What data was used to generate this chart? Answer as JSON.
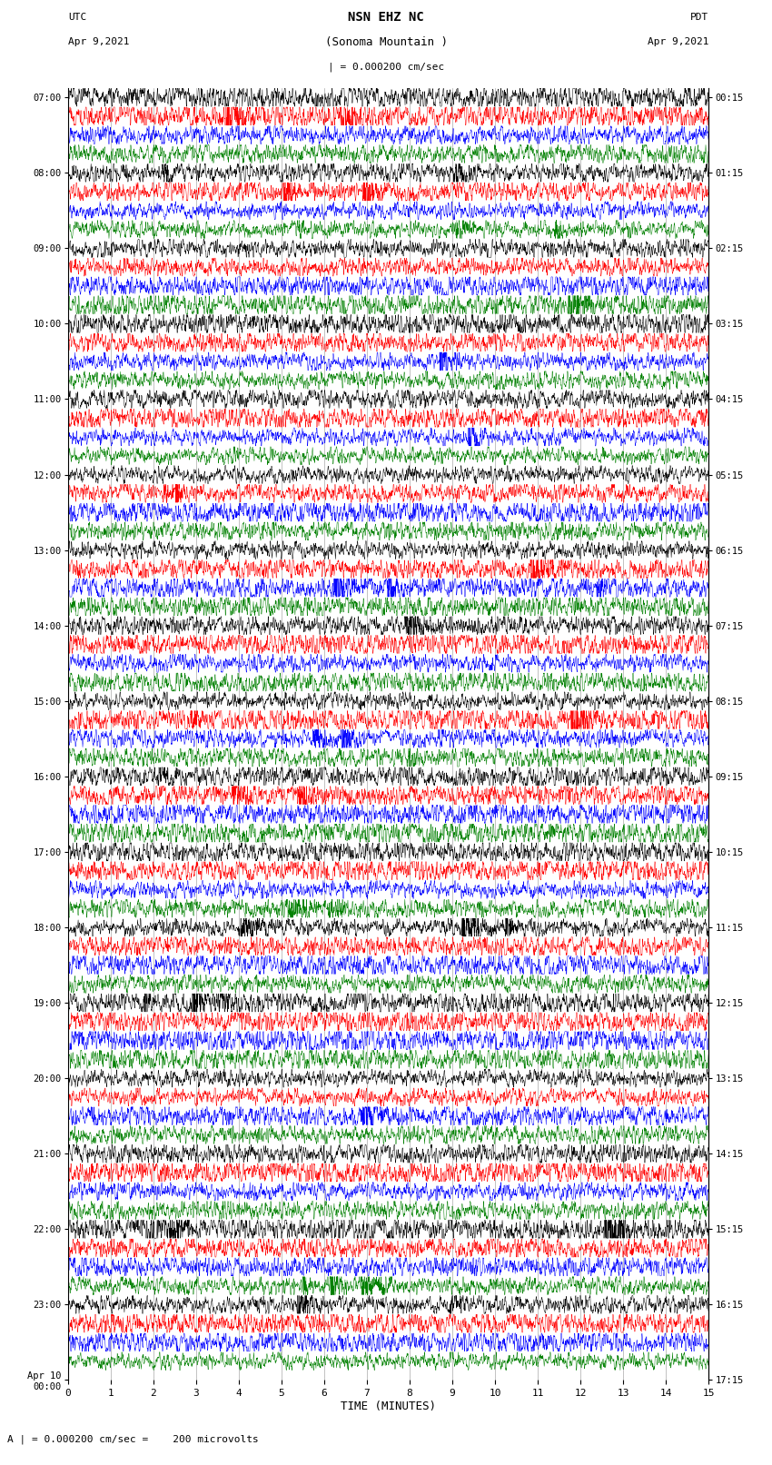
{
  "title_line1": "NSN EHZ NC",
  "title_line2": "(Sonoma Mountain )",
  "title_scale": "| = 0.000200 cm/sec",
  "left_header_line1": "UTC",
  "left_header_line2": "Apr 9,2021",
  "right_header_line1": "PDT",
  "right_header_line2": "Apr 9,2021",
  "xlabel": "TIME (MINUTES)",
  "footnote": "A | = 0.000200 cm/sec =    200 microvolts",
  "time_minutes": 15,
  "colors": [
    "black",
    "red",
    "blue",
    "green"
  ],
  "num_rows": 68,
  "bg_color": "white",
  "grid_color": "#aaaaaa",
  "dpi": 100,
  "fig_width": 8.5,
  "fig_height": 16.13,
  "left_labels": [
    "07:00",
    "",
    "",
    "",
    "08:00",
    "",
    "",
    "",
    "09:00",
    "",
    "",
    "",
    "10:00",
    "",
    "",
    "",
    "11:00",
    "",
    "",
    "",
    "12:00",
    "",
    "",
    "",
    "13:00",
    "",
    "",
    "",
    "14:00",
    "",
    "",
    "",
    "15:00",
    "",
    "",
    "",
    "16:00",
    "",
    "",
    "",
    "17:00",
    "",
    "",
    "",
    "18:00",
    "",
    "",
    "",
    "19:00",
    "",
    "",
    "",
    "20:00",
    "",
    "",
    "",
    "21:00",
    "",
    "",
    "",
    "22:00",
    "",
    "",
    "",
    "23:00",
    "",
    "",
    "",
    "Apr 10\n00:00"
  ],
  "right_labels": [
    "00:15",
    "",
    "",
    "",
    "01:15",
    "",
    "",
    "",
    "02:15",
    "",
    "",
    "",
    "03:15",
    "",
    "",
    "",
    "04:15",
    "",
    "",
    "",
    "05:15",
    "",
    "",
    "",
    "06:15",
    "",
    "",
    "",
    "07:15",
    "",
    "",
    "",
    "08:15",
    "",
    "",
    "",
    "09:15",
    "",
    "",
    "",
    "10:15",
    "",
    "",
    "",
    "11:15",
    "",
    "",
    "",
    "12:15",
    "",
    "",
    "",
    "13:15",
    "",
    "",
    "",
    "14:15",
    "",
    "",
    "",
    "15:15",
    "",
    "",
    "",
    "16:15",
    "",
    "",
    "",
    "17:15"
  ],
  "noise_amplitude": 0.28,
  "event_probability": 0.3,
  "pts_per_row": 3000,
  "linewidth": 0.35
}
